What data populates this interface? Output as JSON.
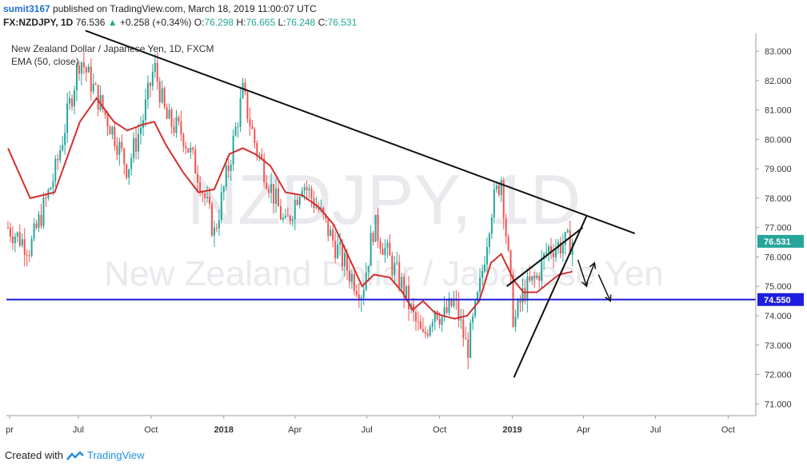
{
  "header": {
    "username": "sumit3167",
    "published_text": "published on TradingView.com, March 18, 2019 11:00:07 UTC",
    "symbol": "FX:NZDJPY, 1D",
    "last": "76.536",
    "change_arrow": "▲",
    "change": "+0.258 (+0.34%)",
    "o_label": "O:",
    "o_val": "76.298",
    "h_label": "H:",
    "h_val": "76.665",
    "l_label": "L:",
    "l_val": "76.248",
    "c_label": "C:",
    "c_val": "76.531"
  },
  "chart_data": {
    "type": "line",
    "title": "New Zealand Dollar / Japanese Yen, 1D, FXCM",
    "indicator": "EMA (50, close)",
    "watermark_symbol": "NZDJPY, 1D",
    "watermark_name": "New Zealand Dollar / Japanese Yen",
    "ylim": [
      70.6,
      83.6
    ],
    "y_ticks": [
      "83.000",
      "82.000",
      "81.000",
      "80.000",
      "79.000",
      "78.000",
      "77.000",
      "76.000",
      "75.000",
      "74.000",
      "73.000",
      "72.000",
      "71.000"
    ],
    "x_ticks": [
      "pr",
      "Jul",
      "Oct",
      "2018",
      "Apr",
      "Jul",
      "Oct",
      "2019",
      "Apr",
      "Jul",
      "Oct"
    ],
    "last_price_label": "76.531",
    "hline_label": "74.550",
    "hline_value": 74.55,
    "colors": {
      "up": "#26a69a",
      "down": "#ef5350",
      "ema": "#d32f2f",
      "hline": "#1e1ee0",
      "price_box": "#26a69a",
      "hline_box": "#1e1ee0"
    },
    "series": [
      {
        "name": "Price",
        "x": [
          "2017-04-03",
          "2017-05-01",
          "2017-06-01",
          "2017-07-03",
          "2017-07-24",
          "2017-08-15",
          "2017-09-01",
          "2017-09-20",
          "2017-10-05",
          "2017-10-20",
          "2017-11-10",
          "2017-11-30",
          "2017-12-20",
          "2018-01-08",
          "2018-01-25",
          "2018-02-10",
          "2018-03-01",
          "2018-03-20",
          "2018-04-10",
          "2018-05-01",
          "2018-05-20",
          "2018-06-08",
          "2018-06-25",
          "2018-07-10",
          "2018-07-30",
          "2018-08-15",
          "2018-08-28",
          "2018-09-10",
          "2018-09-25",
          "2018-10-05",
          "2018-10-20",
          "2018-11-05",
          "2018-11-20",
          "2018-12-05",
          "2018-12-18",
          "2019-01-03",
          "2019-01-15",
          "2019-02-01",
          "2019-02-15",
          "2019-03-01",
          "2019-03-18"
        ],
        "values": [
          77.0,
          76.3,
          78.8,
          82.8,
          81.5,
          80.2,
          79.0,
          80.6,
          82.5,
          80.7,
          80.2,
          78.8,
          76.8,
          79.2,
          81.6,
          79.8,
          78.4,
          77.0,
          78.6,
          77.6,
          76.5,
          75.5,
          74.8,
          77.1,
          75.9,
          75.0,
          74.0,
          73.2,
          74.3,
          73.9,
          74.5,
          72.8,
          74.8,
          77.6,
          78.7,
          73.7,
          74.8,
          75.3,
          76.3,
          76.4,
          76.53
        ]
      },
      {
        "name": "EMA (50, close)",
        "x": [
          "2017-04-03",
          "2017-05-01",
          "2017-06-01",
          "2017-07-03",
          "2017-07-24",
          "2017-08-15",
          "2017-09-01",
          "2017-09-20",
          "2017-10-05",
          "2017-10-20",
          "2017-11-10",
          "2017-11-30",
          "2017-12-20",
          "2018-01-08",
          "2018-01-25",
          "2018-02-10",
          "2018-03-01",
          "2018-03-20",
          "2018-04-10",
          "2018-05-01",
          "2018-05-20",
          "2018-06-08",
          "2018-06-25",
          "2018-07-10",
          "2018-07-30",
          "2018-08-15",
          "2018-08-28",
          "2018-09-10",
          "2018-09-25",
          "2018-10-05",
          "2018-10-20",
          "2018-11-05",
          "2018-11-20",
          "2018-12-05",
          "2018-12-18",
          "2019-01-03",
          "2019-01-15",
          "2019-02-01",
          "2019-02-15",
          "2019-03-01",
          "2019-03-18"
        ],
        "values": [
          79.7,
          78.0,
          78.2,
          80.6,
          81.4,
          80.6,
          80.3,
          80.5,
          80.6,
          79.8,
          78.9,
          78.2,
          78.3,
          79.5,
          79.7,
          79.5,
          79.1,
          78.2,
          78.1,
          77.7,
          77.1,
          76.0,
          75.0,
          75.4,
          75.3,
          74.8,
          74.2,
          74.5,
          74.1,
          74.0,
          73.9,
          74.0,
          74.5,
          75.8,
          76.1,
          75.2,
          74.8,
          74.8,
          75.1,
          75.4,
          75.5
        ]
      }
    ],
    "trendlines": [
      {
        "name": "long downtrend",
        "from": [
          "2017-07-10",
          83.7
        ],
        "to": [
          "2019-06-05",
          76.8
        ]
      },
      {
        "name": "wedge lower",
        "from": [
          "2019-01-03",
          71.9
        ],
        "to": [
          "2019-04-05",
          77.4
        ]
      },
      {
        "name": "wedge upper",
        "from": [
          "2018-12-25",
          75.0
        ],
        "to": [
          "2019-03-31",
          77.0
        ]
      }
    ],
    "arrows": [
      {
        "from": [
          "2019-03-25",
          75.9
        ],
        "to": [
          "2019-04-05",
          75.0
        ]
      },
      {
        "from": [
          "2019-04-05",
          75.1
        ],
        "to": [
          "2019-04-15",
          75.8
        ]
      },
      {
        "from": [
          "2019-04-20",
          75.4
        ],
        "to": [
          "2019-05-05",
          74.5
        ]
      }
    ]
  },
  "footer": {
    "created_with": "Created with",
    "brand": "TradingView"
  }
}
